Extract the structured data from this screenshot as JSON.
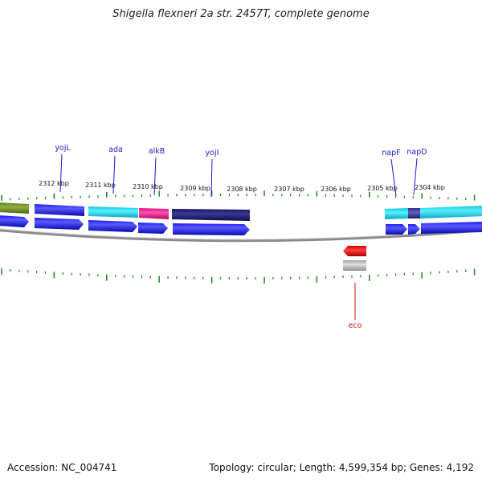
{
  "title": "Shigella flexneri 2a str. 2457T, complete genome",
  "accession": "Accession: NC_004741",
  "summary": "Topology: circular; Length: 4,599,354 bp; Genes: 4,192",
  "scale": {
    "unit": "kbp",
    "labels": [
      "2312 kbp",
      "2311 kbp",
      "2310 kbp",
      "2309 kbp",
      "2308 kbp",
      "2307 kbp",
      "2306 kbp",
      "2305 kbp",
      "2304 kbp"
    ]
  },
  "gene_labels": [
    {
      "name": "yojL",
      "color": "#1a1ad0"
    },
    {
      "name": "ada",
      "color": "#1a1ad0"
    },
    {
      "name": "alkB",
      "color": "#1a1ad0"
    },
    {
      "name": "yojI",
      "color": "#1a1ad0"
    },
    {
      "name": "napF",
      "color": "#1a1ad0"
    },
    {
      "name": "napD",
      "color": "#1a1ad0"
    },
    {
      "name": "eco",
      "color": "#cc1111"
    }
  ],
  "colors": {
    "cds": "#1010e0",
    "cog_cyan": "#18d8e8",
    "cog_pink": "#f0208c",
    "cog_navy": "#202070",
    "cog_slate": "#404098",
    "cog_olive": "#6a8a20",
    "reverse_red": "#ee1010",
    "reverse_grey": "#b8b8b8",
    "backbone": "#8a8a8a",
    "tick": "#2a8a2a"
  }
}
